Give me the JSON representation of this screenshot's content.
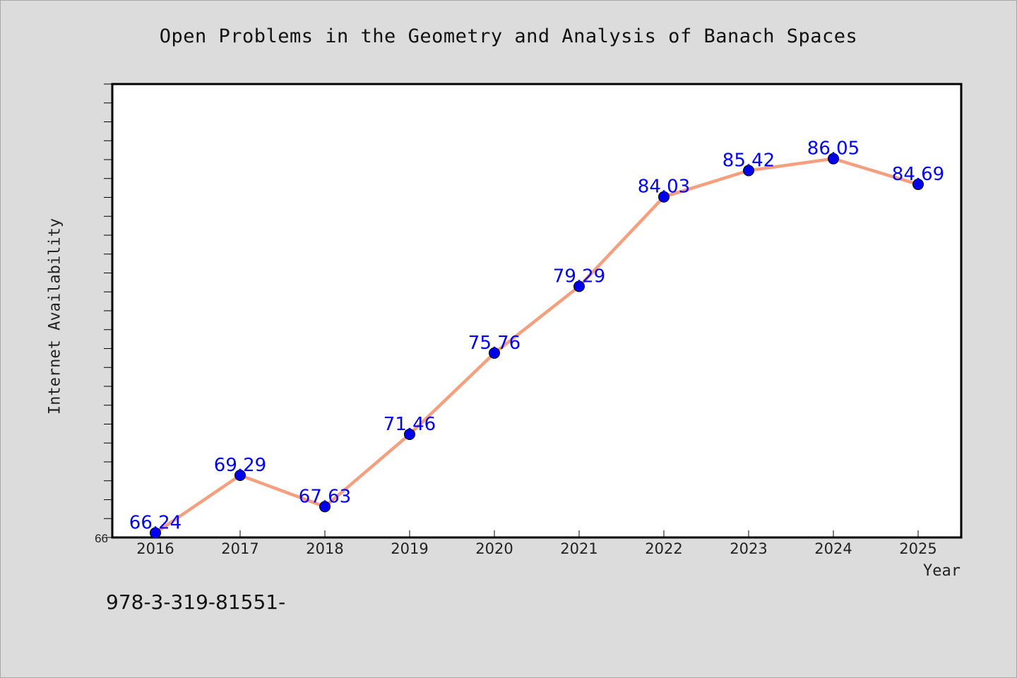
{
  "chart_data": {
    "type": "line",
    "title": "Open Problems in the Geometry and Analysis of Banach Spaces",
    "xlabel": "Year",
    "ylabel": "Internet Availability",
    "categories": [
      "2016",
      "2017",
      "2018",
      "2019",
      "2020",
      "2021",
      "2022",
      "2023",
      "2024",
      "2025"
    ],
    "series": [
      {
        "values": [
          66.24,
          69.29,
          67.63,
          71.46,
          75.76,
          79.29,
          84.03,
          85.42,
          86.05,
          84.69
        ]
      }
    ],
    "y_tick_labels": [
      "66"
    ],
    "ylim": [
      66,
      90
    ],
    "grid": false,
    "colors": {
      "line": "#f4a07e",
      "marker": "#0000ee",
      "data_label": "#0000ff"
    }
  },
  "footer": {
    "isbn": "978-3-319-81551-"
  }
}
